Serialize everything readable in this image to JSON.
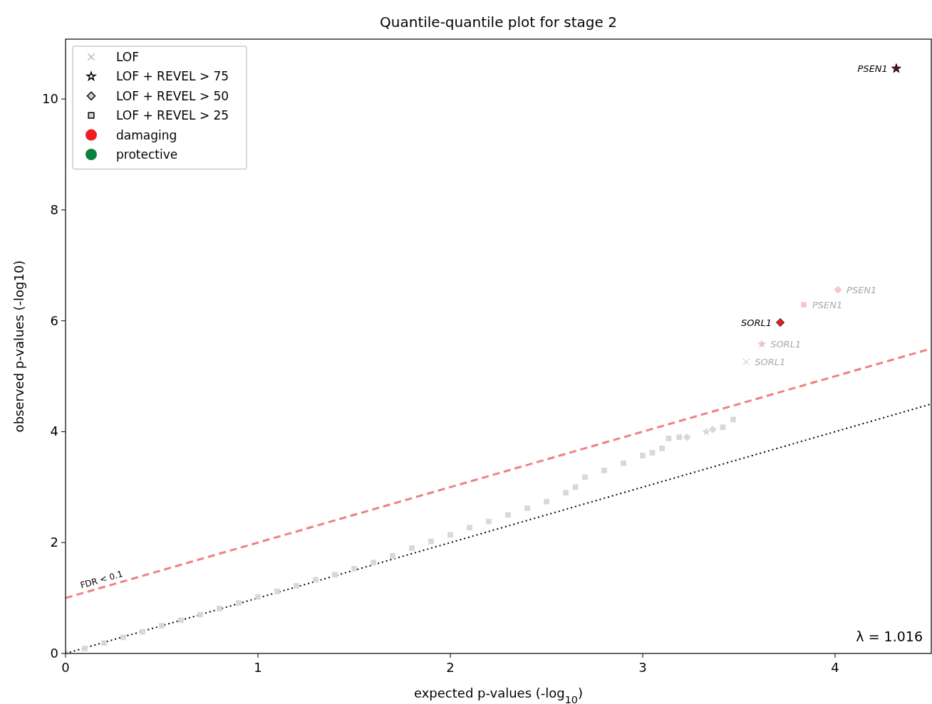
{
  "chart_data": {
    "type": "scatter",
    "title": "Quantile-quantile plot for stage 2",
    "xlabel": "expected p-values (-log$_{10}$)",
    "ylabel": "observed p-values (-log10)",
    "xlim": [
      0,
      4.5
    ],
    "ylim": [
      0,
      11.08
    ],
    "xticks": [
      0,
      1,
      2,
      3,
      4
    ],
    "yticks": [
      0,
      2,
      4,
      6,
      8,
      10
    ],
    "grid": false,
    "legend": "top left",
    "series": [
      {
        "name": "LOF",
        "marker": "cross",
        "color": "#c8b4b4",
        "x": [
          3.538
        ],
        "values": [
          5.26
        ]
      },
      {
        "name": "LOF + REVEL > 75",
        "marker": "star",
        "color": "#ffffff",
        "x": [
          4.318,
          3.619,
          3.33
        ],
        "values": [
          10.55,
          5.58,
          4.0
        ],
        "colors": [
          "#6b1010",
          "#e8c4c4",
          "#d8d8d8"
        ]
      },
      {
        "name": "LOF + REVEL > 50",
        "marker": "diamond",
        "color": "#d3d3d3",
        "x": [
          3.715,
          4.015,
          3.364,
          3.23
        ],
        "values": [
          5.97,
          6.56,
          4.04,
          3.9
        ],
        "colors": [
          "#ee1c25",
          "#f4c8c8",
          "#d8d8d8",
          "#d8d8d8"
        ]
      },
      {
        "name": "LOF + REVEL > 25",
        "marker": "square",
        "color": "#d3d3d3",
        "x": [
          3.837,
          0,
          0.1,
          0.2,
          0.3,
          0.4,
          0.5,
          0.6,
          0.7,
          0.8,
          0.9,
          1.0,
          1.1,
          1.2,
          1.3,
          1.4,
          1.5,
          1.6,
          1.7,
          1.8,
          1.9,
          2.0,
          2.1,
          2.2,
          2.3,
          2.4,
          2.5,
          2.6,
          2.65,
          2.7,
          2.8,
          2.9,
          3.0,
          3.05,
          3.1,
          3.135,
          3.19,
          3.416,
          3.47
        ],
        "values": [
          6.29,
          0,
          0.09,
          0.19,
          0.29,
          0.39,
          0.5,
          0.6,
          0.7,
          0.81,
          0.91,
          1.02,
          1.12,
          1.22,
          1.33,
          1.42,
          1.53,
          1.64,
          1.76,
          1.9,
          2.02,
          2.14,
          2.27,
          2.38,
          2.5,
          2.62,
          2.74,
          2.9,
          3.0,
          3.18,
          3.3,
          3.43,
          3.57,
          3.62,
          3.7,
          3.88,
          3.9,
          4.08,
          4.22
        ],
        "colors": [
          "#f4c8c8",
          "#d8d8d8",
          "#d8d8d8",
          "#d8d8d8",
          "#d8d8d8",
          "#d8d8d8",
          "#d8d8d8",
          "#d8d8d8",
          "#d8d8d8",
          "#d8d8d8",
          "#d8d8d8",
          "#d8d8d8",
          "#d8d8d8",
          "#d8d8d8",
          "#d8d8d8",
          "#d8d8d8",
          "#d8d8d8",
          "#d8d8d8",
          "#d8d8d8",
          "#d8d8d8",
          "#d8d8d8",
          "#d8d8d8",
          "#d8d8d8",
          "#d8d8d8",
          "#d8d8d8",
          "#d8d8d8",
          "#d8d8d8",
          "#d8d8d8",
          "#d8d8d8",
          "#d8d8d8",
          "#d8d8d8",
          "#d8d8d8",
          "#d8d8d8",
          "#d8d8d8",
          "#d8d8d8",
          "#d8d8d8",
          "#d8d8d8",
          "#d8d8d8",
          "#d8d8d8"
        ]
      },
      {
        "name": "damaging",
        "marker": "circle",
        "color": "#ee1c25"
      },
      {
        "name": "protective",
        "marker": "circle",
        "color": "#0a8040"
      },
      {
        "type": "line",
        "color": "#000000",
        "line_style": "dotted",
        "x": [
          0,
          4.5
        ],
        "values": [
          0,
          4.5
        ]
      },
      {
        "type": "line",
        "color": "#f08080",
        "line_style": "dashed",
        "x": [
          0,
          4.5
        ],
        "values": [
          1,
          5.5
        ]
      }
    ],
    "annotations": [
      {
        "text": "PSEN1",
        "x": 4.318,
        "y": 10.55
      },
      {
        "text": "SORL1",
        "x": 3.715,
        "y": 5.97
      },
      {
        "text": "PSEN1",
        "x": 4.015,
        "y": 6.56
      },
      {
        "text": "PSEN1",
        "x": 3.837,
        "y": 6.29
      },
      {
        "text": "SORL1",
        "x": 3.619,
        "y": 5.58
      },
      {
        "text": "SORL1",
        "x": 3.538,
        "y": 5.26
      },
      "FDR < 0.1",
      "λ =  1.016"
    ]
  }
}
